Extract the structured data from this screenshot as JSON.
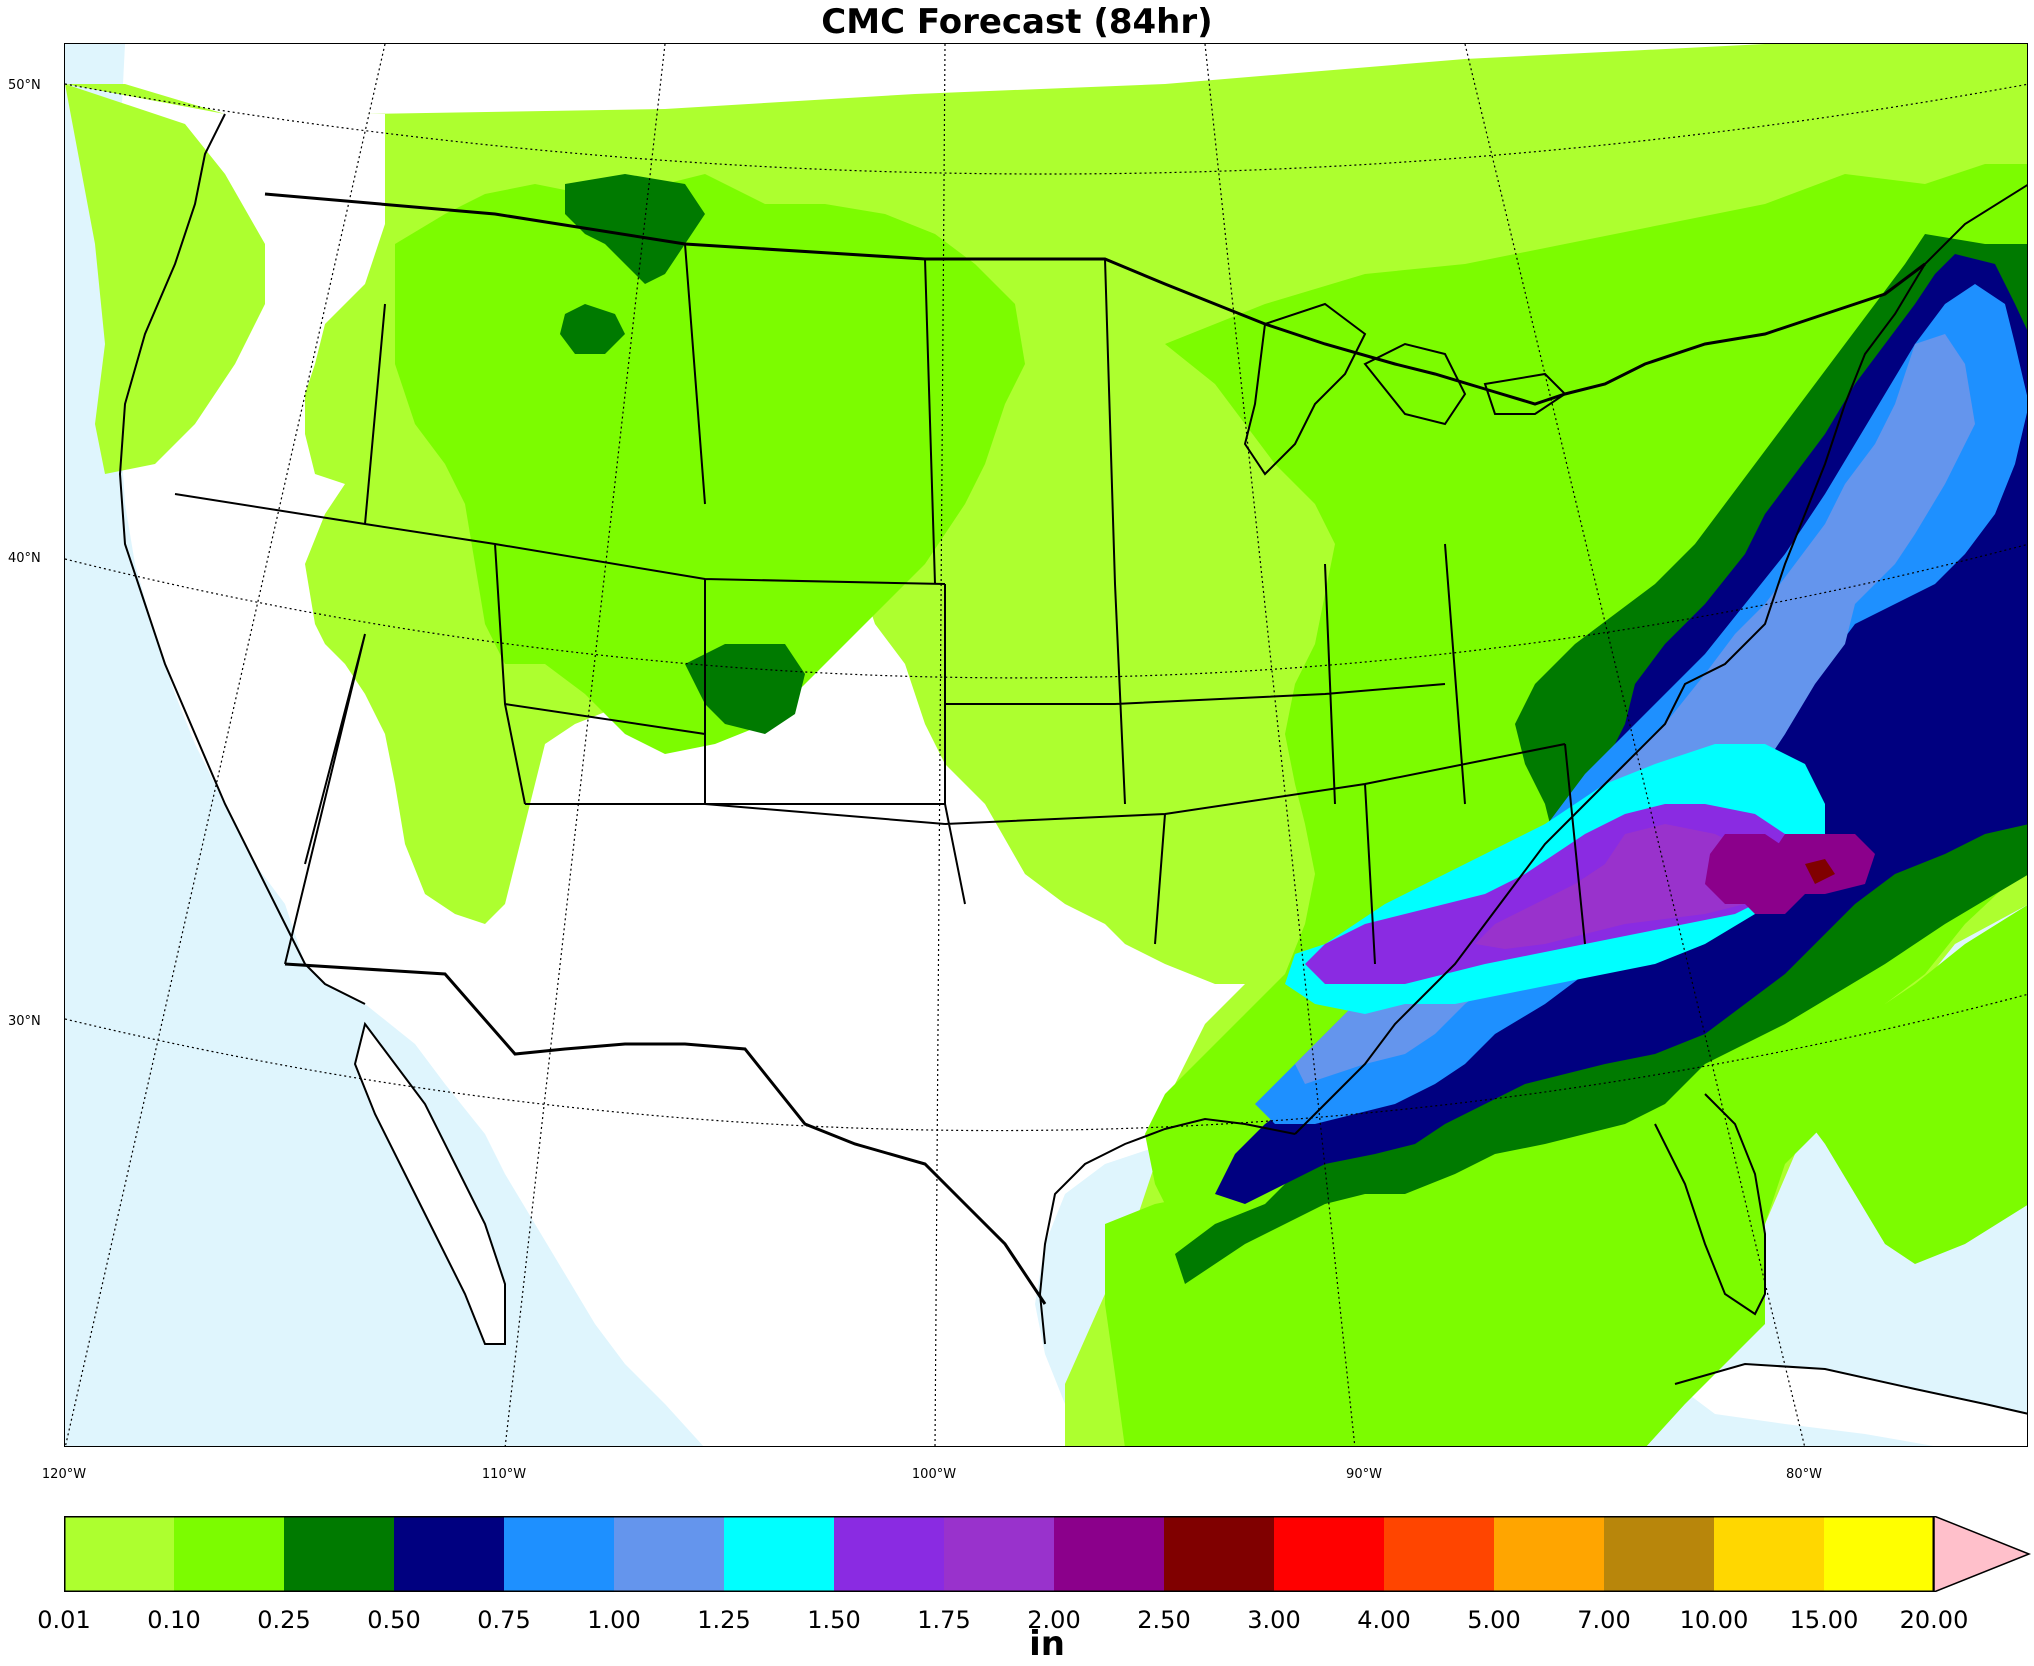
{
  "title": "CMC Forecast (84hr)",
  "map": {
    "region": "Continental United States, southern Canada, northern Mexico",
    "colors": {
      "ocean": "#dff5fd",
      "land": "#ffffff",
      "borders": "#000000",
      "gridlines": "#000000"
    },
    "lat_labels": [
      "50°N",
      "40°N",
      "30°N"
    ],
    "lon_labels": [
      "120°W",
      "110°W",
      "100°W",
      "90°W",
      "80°W"
    ],
    "gridlines": "dotted"
  },
  "colorbar": {
    "unit": "in",
    "ticks": [
      "0.01",
      "0.10",
      "0.25",
      "0.50",
      "0.75",
      "1.00",
      "1.25",
      "1.50",
      "1.75",
      "2.00",
      "2.50",
      "3.00",
      "4.00",
      "5.00",
      "7.00",
      "10.00",
      "15.00",
      "20.00"
    ],
    "colors": [
      "#adff2f",
      "#7cfc00",
      "#007a00",
      "#000080",
      "#1e90ff",
      "#6495ed",
      "#00ffff",
      "#8a2be2",
      "#9932cc",
      "#8b008b",
      "#800000",
      "#ff0000",
      "#ff4500",
      "#ffa500",
      "#b8860b",
      "#ffd700",
      "#ffff00"
    ],
    "extend_color": "#ffc0cb"
  }
}
